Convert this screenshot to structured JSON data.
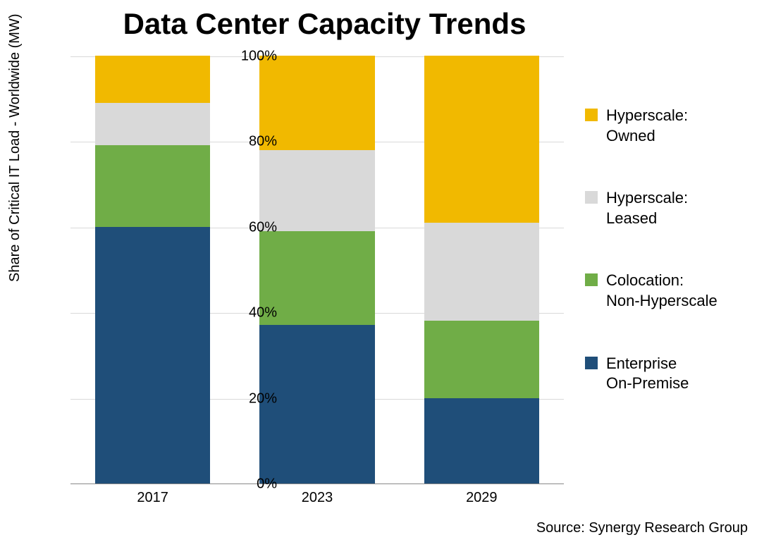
{
  "title": "Data Center Capacity Trends",
  "title_fontsize": 42,
  "y_axis_label": "Share of Critical IT Load - Worldwide (MW)",
  "y_axis_label_fontsize": 20,
  "source": "Source: Synergy Research Group",
  "source_fontsize": 20,
  "background_color": "#ffffff",
  "grid_color": "#d9d9d9",
  "axis_color": "#888888",
  "text_color": "#000000",
  "ylim": [
    0,
    100
  ],
  "ytick_step": 20,
  "y_ticks": [
    {
      "value": 0,
      "label": "0%"
    },
    {
      "value": 20,
      "label": "20%"
    },
    {
      "value": 40,
      "label": "40%"
    },
    {
      "value": 60,
      "label": "60%"
    },
    {
      "value": 80,
      "label": "80%"
    },
    {
      "value": 100,
      "label": "100%"
    }
  ],
  "tick_fontsize": 20,
  "categories": [
    "2017",
    "2023",
    "2029"
  ],
  "series": [
    {
      "name": "Enterprise On-Premise",
      "color": "#1f4e79",
      "legend_label": "Enterprise\nOn-Premise"
    },
    {
      "name": "Colocation: Non-Hyperscale",
      "color": "#70ad47",
      "legend_label": "Colocation:\nNon-Hyperscale"
    },
    {
      "name": "Hyperscale: Leased",
      "color": "#d9d9d9",
      "legend_label": "Hyperscale:\nLeased"
    },
    {
      "name": "Hyperscale: Owned",
      "color": "#f1b900",
      "legend_label": "Hyperscale:\nOwned"
    }
  ],
  "data": {
    "2017": [
      60,
      19,
      10,
      11
    ],
    "2023": [
      37,
      22,
      19,
      22
    ],
    "2029": [
      20,
      18,
      23,
      39
    ]
  },
  "legend_fontsize": 22,
  "bar_width_ratio": 0.7,
  "chart_type": "stacked-bar"
}
